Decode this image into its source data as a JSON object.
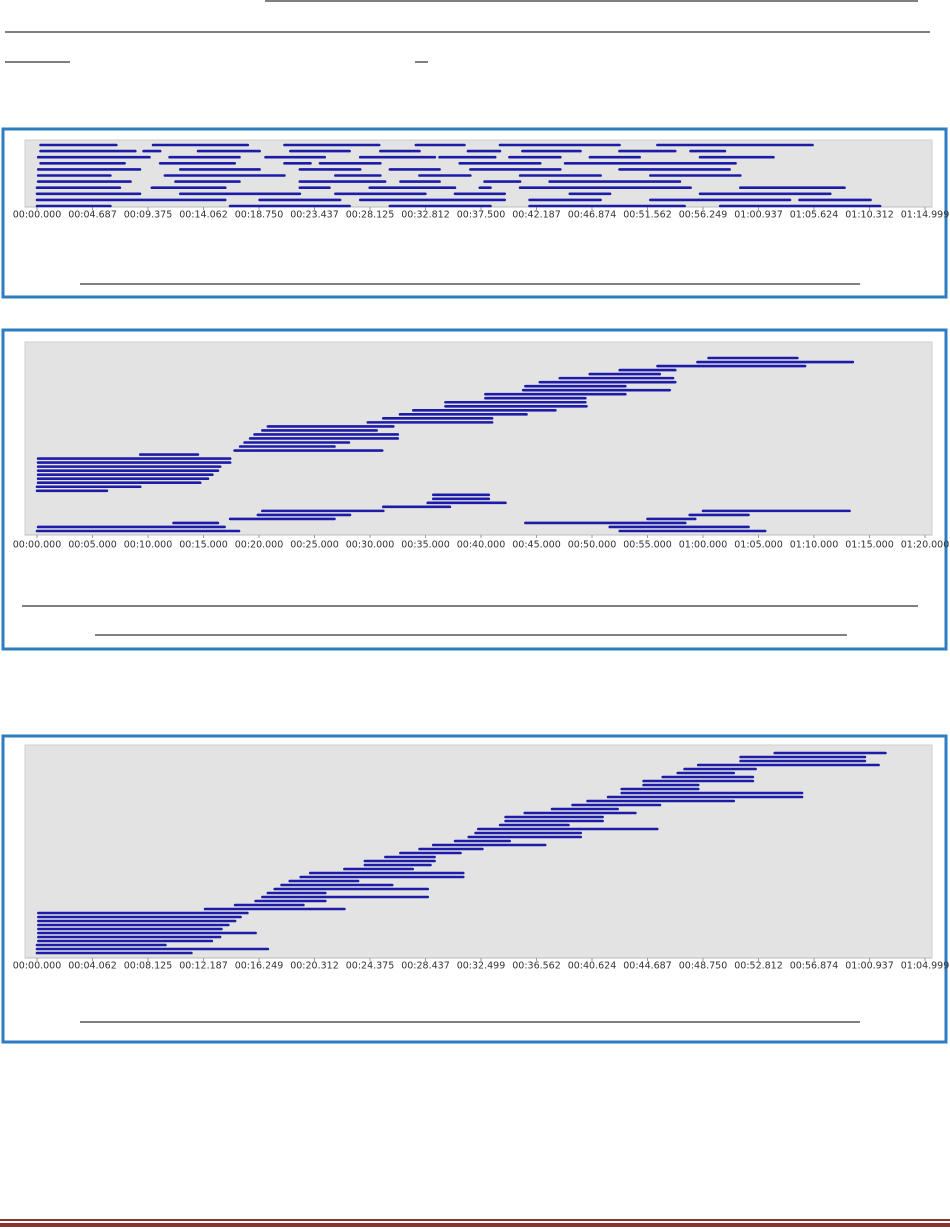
{
  "chart_data": [
    {
      "type": "timeline",
      "color": "#1c1ca8",
      "xlim": [
        0,
        74.999
      ],
      "xticks": [
        {
          "value": 0,
          "label": "00:00.000"
        },
        {
          "value": 4.687,
          "label": "00:04.687"
        },
        {
          "value": 9.375,
          "label": "00:09.375"
        },
        {
          "value": 14.062,
          "label": "00:14.062"
        },
        {
          "value": 18.75,
          "label": "00:18.750"
        },
        {
          "value": 23.437,
          "label": "00:23.437"
        },
        {
          "value": 28.125,
          "label": "00:28.125"
        },
        {
          "value": 32.812,
          "label": "00:32.812"
        },
        {
          "value": 37.5,
          "label": "00:37.500"
        },
        {
          "value": 42.187,
          "label": "00:42.187"
        },
        {
          "value": 46.874,
          "label": "00:46.874"
        },
        {
          "value": 51.562,
          "label": "00:51.562"
        },
        {
          "value": 56.249,
          "label": "00:56.249"
        },
        {
          "value": 60.937,
          "label": "01:00.937"
        },
        {
          "value": 65.624,
          "label": "01:05.624"
        },
        {
          "value": 70.312,
          "label": "01:10.312"
        },
        {
          "value": 74.999,
          "label": "01:14.999"
        }
      ],
      "rows": [
        [
          [
            0.3,
            6.7
          ],
          [
            9.8,
            17.8
          ],
          [
            20.9,
            28.9
          ],
          [
            32.0,
            36.1
          ],
          [
            39.1,
            49.2
          ],
          [
            52.4,
            65.5
          ]
        ],
        [
          [
            0.3,
            8.3
          ],
          [
            9.0,
            10.4
          ],
          [
            13.6,
            18.8
          ],
          [
            21.4,
            26.4
          ],
          [
            29.0,
            32.3
          ],
          [
            36.4,
            39.1
          ],
          [
            41.0,
            45.9
          ],
          [
            49.2,
            53.9
          ],
          [
            55.2,
            58.1
          ]
        ],
        [
          [
            0.1,
            9.5
          ],
          [
            11.2,
            17.1
          ],
          [
            19.3,
            24.3
          ],
          [
            27.3,
            33.6
          ],
          [
            34.0,
            38.7
          ],
          [
            39.9,
            44.2
          ],
          [
            46.7,
            50.9
          ],
          [
            56.0,
            62.2
          ]
        ],
        [
          [
            0.3,
            7.4
          ],
          [
            10.4,
            16.7
          ],
          [
            20.9,
            23.1
          ],
          [
            23.9,
            29.0
          ],
          [
            35.7,
            42.5
          ],
          [
            44.6,
            59.0
          ]
        ],
        [
          [
            0.1,
            8.7
          ],
          [
            12.1,
            18.8
          ],
          [
            22.2,
            27.3
          ],
          [
            29.8,
            34.0
          ],
          [
            36.6,
            44.2
          ],
          [
            49.2,
            58.5
          ]
        ],
        [
          [
            0.1,
            6.2
          ],
          [
            10.8,
            20.9
          ],
          [
            25.2,
            29.0
          ],
          [
            32.3,
            36.6
          ],
          [
            40.8,
            47.6
          ],
          [
            51.8,
            59.4
          ]
        ],
        [
          [
            0.1,
            7.9
          ],
          [
            11.7,
            17.1
          ],
          [
            22.2,
            29.4
          ],
          [
            30.7,
            34.0
          ],
          [
            37.8,
            40.8
          ],
          [
            43.3,
            54.3
          ]
        ],
        [
          [
            0,
            7.0
          ],
          [
            9.7,
            15.9
          ],
          [
            22.2,
            24.7
          ],
          [
            28.1,
            35.3
          ],
          [
            37.4,
            38.3
          ],
          [
            40.8,
            55.2
          ],
          [
            59.4,
            68.2
          ]
        ],
        [
          [
            0,
            8.7
          ],
          [
            12.1,
            22.2
          ],
          [
            25.2,
            32.8
          ],
          [
            35.3,
            39.5
          ],
          [
            45.0,
            48.4
          ],
          [
            56.0,
            67.0
          ]
        ],
        [
          [
            0,
            15.9
          ],
          [
            18.8,
            25.6
          ],
          [
            27.3,
            39.5
          ],
          [
            41.6,
            47.6
          ],
          [
            51.8,
            63.6
          ],
          [
            64.4,
            70.4
          ]
        ],
        [
          [
            0,
            6.2
          ],
          [
            16.3,
            26.4
          ],
          [
            29.8,
            38.3
          ],
          [
            41.6,
            54.7
          ],
          [
            57.7,
            71.2
          ]
        ]
      ]
    },
    {
      "type": "timeline",
      "color": "#1c1ca8",
      "xlim": [
        0,
        80
      ],
      "xticks": [
        {
          "value": 0,
          "label": "00:00.000"
        },
        {
          "value": 5,
          "label": "00:05.000"
        },
        {
          "value": 10,
          "label": "00:10.000"
        },
        {
          "value": 15,
          "label": "00:15.000"
        },
        {
          "value": 20,
          "label": "00:20.000"
        },
        {
          "value": 25,
          "label": "00:25.000"
        },
        {
          "value": 30,
          "label": "00:30.000"
        },
        {
          "value": 35,
          "label": "00:35.000"
        },
        {
          "value": 40,
          "label": "00:40.000"
        },
        {
          "value": 45,
          "label": "00:45.000"
        },
        {
          "value": 50,
          "label": "00:50.000"
        },
        {
          "value": 55,
          "label": "00:55.000"
        },
        {
          "value": 60,
          "label": "01:00.000"
        },
        {
          "value": 65,
          "label": "01:05.000"
        },
        {
          "value": 70,
          "label": "01:10.000"
        },
        {
          "value": 75,
          "label": "01:15.000"
        },
        {
          "value": 80,
          "label": "01:20.000"
        }
      ],
      "rows": [
        [
          [
            60.5,
            68.5
          ]
        ],
        [
          [
            59.5,
            73.5
          ]
        ],
        [
          [
            55.9,
            69.2
          ]
        ],
        [
          [
            52.5,
            57.5
          ]
        ],
        [
          [
            49.8,
            56.1
          ]
        ],
        [
          [
            47.1,
            57.3
          ]
        ],
        [
          [
            45.3,
            57.5
          ]
        ],
        [
          [
            44.0,
            53.0
          ]
        ],
        [
          [
            43.8,
            57.0
          ]
        ],
        [
          [
            40.4,
            53.0
          ]
        ],
        [
          [
            40.4,
            49.4
          ]
        ],
        [
          [
            36.8,
            49.4
          ]
        ],
        [
          [
            36.8,
            49.5
          ]
        ],
        [
          [
            33.9,
            46.7
          ]
        ],
        [
          [
            32.7,
            44.1
          ]
        ],
        [
          [
            31.2,
            41.0
          ]
        ],
        [
          [
            29.8,
            41.0
          ]
        ],
        [
          [
            20.8,
            32.1
          ]
        ],
        [
          [
            20.3,
            30.6
          ]
        ],
        [
          [
            19.6,
            32.5
          ]
        ],
        [
          [
            19.2,
            32.5
          ]
        ],
        [
          [
            18.7,
            28.1
          ]
        ],
        [
          [
            18.3,
            26.8
          ]
        ],
        [
          [
            17.8,
            31.1
          ]
        ],
        [
          [
            9.3,
            14.5
          ]
        ],
        [
          [
            0.1,
            17.4
          ]
        ],
        [
          [
            0.1,
            17.4
          ]
        ],
        [
          [
            0.1,
            16.5
          ]
        ],
        [
          [
            0.1,
            16.3
          ]
        ],
        [
          [
            0.1,
            15.8
          ]
        ],
        [
          [
            0.1,
            15.4
          ]
        ],
        [
          [
            0.1,
            14.7
          ]
        ],
        [
          [
            0,
            9.3
          ]
        ],
        [
          [
            0,
            6.3
          ]
        ],
        [
          [
            35.7,
            40.7
          ]
        ],
        [
          [
            35.7,
            40.7
          ]
        ],
        [
          [
            35.2,
            42.2
          ]
        ],
        [
          [
            31.2,
            37.2
          ]
        ],
        [
          [
            20.3,
            31.2
          ],
          [
            60.0,
            73.2
          ]
        ],
        [
          [
            19.9,
            28.2
          ],
          [
            58.8,
            64.1
          ]
        ],
        [
          [
            17.4,
            26.8
          ],
          [
            55.0,
            59.3
          ]
        ],
        [
          [
            12.3,
            16.3
          ],
          [
            44.0,
            58.4
          ]
        ],
        [
          [
            0.1,
            16.9
          ],
          [
            51.6,
            64.1
          ]
        ],
        [
          [
            0,
            18.2
          ],
          [
            52.5,
            65.6
          ]
        ]
      ]
    },
    {
      "type": "timeline",
      "color": "#1c1ca8",
      "xlim": [
        0,
        64.999
      ],
      "xticks": [
        {
          "value": 0,
          "label": "00:00.000"
        },
        {
          "value": 4.062,
          "label": "00:04.062"
        },
        {
          "value": 8.125,
          "label": "00:08.125"
        },
        {
          "value": 12.187,
          "label": "00:12.187"
        },
        {
          "value": 16.249,
          "label": "00:16.249"
        },
        {
          "value": 20.312,
          "label": "00:20.312"
        },
        {
          "value": 24.375,
          "label": "00:24.375"
        },
        {
          "value": 28.437,
          "label": "00:28.437"
        },
        {
          "value": 32.499,
          "label": "00:32.499"
        },
        {
          "value": 36.562,
          "label": "00:36.562"
        },
        {
          "value": 40.624,
          "label": "00:40.624"
        },
        {
          "value": 44.687,
          "label": "00:44.687"
        },
        {
          "value": 48.75,
          "label": "00:48.750"
        },
        {
          "value": 52.812,
          "label": "00:52.812"
        },
        {
          "value": 56.874,
          "label": "00:56.874"
        },
        {
          "value": 60.937,
          "label": "01:00.937"
        },
        {
          "value": 64.999,
          "label": "01:04.999"
        }
      ],
      "rows": [
        [
          [
            54.0,
            62.1
          ]
        ],
        [
          [
            51.5,
            60.6
          ]
        ],
        [
          [
            51.5,
            60.6
          ]
        ],
        [
          [
            48.4,
            61.6
          ]
        ],
        [
          [
            47.4,
            52.6
          ]
        ],
        [
          [
            46.9,
            51.0
          ]
        ],
        [
          [
            45.8,
            52.4
          ]
        ],
        [
          [
            44.4,
            52.4
          ]
        ],
        [
          [
            44.4,
            48.4
          ]
        ],
        [
          [
            42.8,
            48.4
          ]
        ],
        [
          [
            42.8,
            56.0
          ]
        ],
        [
          [
            41.8,
            56.0
          ]
        ],
        [
          [
            40.3,
            51.0
          ]
        ],
        [
          [
            39.2,
            45.6
          ]
        ],
        [
          [
            37.7,
            42.5
          ]
        ],
        [
          [
            35.7,
            43.8
          ]
        ],
        [
          [
            34.3,
            41.4
          ]
        ],
        [
          [
            34.3,
            41.4
          ]
        ],
        [
          [
            33.9,
            38.9
          ]
        ],
        [
          [
            32.3,
            45.4
          ]
        ],
        [
          [
            32.1,
            39.8
          ]
        ],
        [
          [
            31.6,
            39.8
          ]
        ],
        [
          [
            30.6,
            34.6
          ]
        ],
        [
          [
            29.0,
            37.2
          ]
        ],
        [
          [
            28.0,
            32.6
          ]
        ],
        [
          [
            26.6,
            31.0
          ]
        ],
        [
          [
            25.5,
            29.1
          ]
        ],
        [
          [
            24.0,
            29.1
          ]
        ],
        [
          [
            24.0,
            28.8
          ]
        ],
        [
          [
            22.5,
            27.5
          ]
        ],
        [
          [
            20.0,
            31.2
          ]
        ],
        [
          [
            19.3,
            31.2
          ]
        ],
        [
          [
            18.5,
            23.5
          ]
        ],
        [
          [
            17.9,
            26.0
          ]
        ],
        [
          [
            17.4,
            28.6
          ]
        ],
        [
          [
            16.9,
            21.1
          ]
        ],
        [
          [
            16.5,
            28.6
          ]
        ],
        [
          [
            16.0,
            21.1
          ]
        ],
        [
          [
            14.5,
            19.5
          ]
        ],
        [
          [
            12.3,
            22.5
          ]
        ],
        [
          [
            0.1,
            15.4
          ]
        ],
        [
          [
            0.1,
            14.9
          ]
        ],
        [
          [
            0.1,
            14.5
          ]
        ],
        [
          [
            0.1,
            14.0
          ]
        ],
        [
          [
            0.1,
            13.5
          ]
        ],
        [
          [
            0.1,
            16.0
          ]
        ],
        [
          [
            0.1,
            13.4
          ]
        ],
        [
          [
            0.1,
            12.8
          ]
        ],
        [
          [
            0,
            9.4
          ]
        ],
        [
          [
            0,
            16.9
          ]
        ],
        [
          [
            0,
            11.3
          ]
        ]
      ]
    }
  ]
}
